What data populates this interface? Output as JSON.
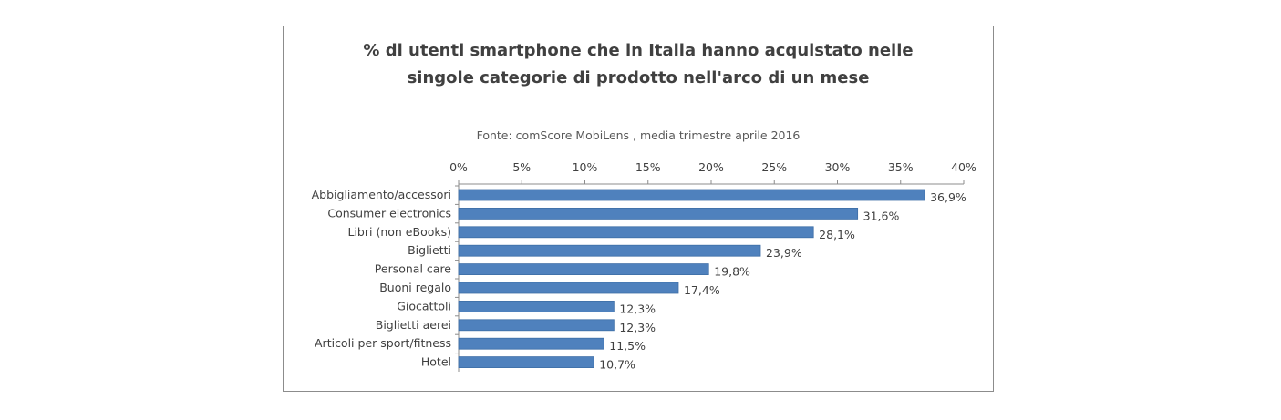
{
  "chart_data": {
    "type": "bar",
    "orientation": "horizontal",
    "title_lines": [
      "% di utenti smartphone che in Italia hanno acquistato nelle",
      "singole categorie di prodotto nell'arco di un mese"
    ],
    "source": "Fonte:  comScore MobiLens , media trimestre aprile 2016",
    "categories": [
      "Abbigliamento/accessori",
      "Consumer electronics",
      "Libri (non eBooks)",
      "Biglietti",
      "Personal care",
      "Buoni regalo",
      "Giocattoli",
      "Biglietti aerei",
      "Articoli per sport/fitness",
      "Hotel"
    ],
    "values": [
      36.9,
      31.6,
      28.1,
      23.9,
      19.8,
      17.4,
      12.3,
      12.3,
      11.5,
      10.7
    ],
    "data_labels": [
      "36,9%",
      "31,6%",
      "28,1%",
      "23,9%",
      "19,8%",
      "17,4%",
      "12,3%",
      "12,3%",
      "11,5%",
      "10,7%"
    ],
    "xlim": [
      0,
      40
    ],
    "ticks": [
      0,
      5,
      10,
      15,
      20,
      25,
      30,
      35,
      40
    ],
    "tick_labels": [
      "0%",
      "5%",
      "10%",
      "15%",
      "20%",
      "25%",
      "30%",
      "35%",
      "40%"
    ],
    "xaxis_position": "top",
    "grid": false,
    "bar_color": "#4f81bd"
  }
}
